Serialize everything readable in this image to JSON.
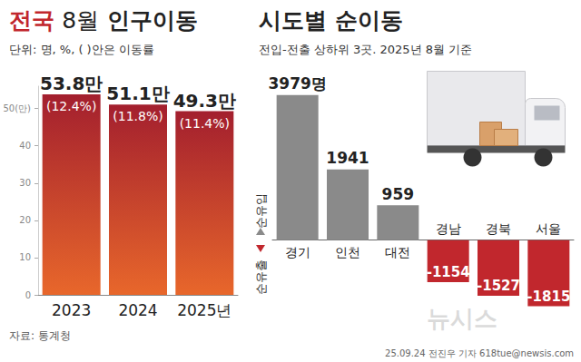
{
  "chart_data": [
    {
      "type": "bar",
      "title": "전국 8월 인구이동",
      "subtitle": "단위: 명, %, ( )안은 이동률",
      "categories": [
        "2023",
        "2024",
        "2025년"
      ],
      "values": [
        53.8,
        51.1,
        49.3
      ],
      "value_labels": [
        "53.8만",
        "51.1만",
        "49.3만"
      ],
      "rate_labels": [
        "(12.4%)",
        "(11.8%)",
        "(11.4%)"
      ],
      "color": "#a31f2e",
      "ylim": [
        0,
        56
      ],
      "yticks": [
        0,
        10,
        20,
        30,
        40,
        {
          "value": 50,
          "label": "50(만)"
        }
      ],
      "grid": false,
      "data_labels": true
    },
    {
      "type": "bar",
      "title": "시도별 순이동",
      "subtitle": "전입-전출 상하위 3곳. 2025년 8월 기준",
      "categories": [
        "경기",
        "인천",
        "대전",
        "경남",
        "경북",
        "서울"
      ],
      "values": [
        3979,
        1941,
        959,
        -1154,
        -1527,
        -1815
      ],
      "value_labels": [
        "3979명",
        "1941",
        "959",
        "-1154",
        "-1527",
        "-1815"
      ],
      "colors": [
        "#8a8a8a",
        "#8a8a8a",
        "#8a8a8a",
        "#c1272d",
        "#c1272d",
        "#c1272d"
      ],
      "ylim": [
        -2200,
        4200
      ],
      "annotations": [
        "순유입",
        "순유출"
      ],
      "tick_labels": false,
      "grid": false,
      "data_labels": true
    }
  ],
  "source": "자료: 통계청",
  "credit": "25.09.24 전진우 기자 618tue@newsis.com",
  "watermark": "뉴시스"
}
